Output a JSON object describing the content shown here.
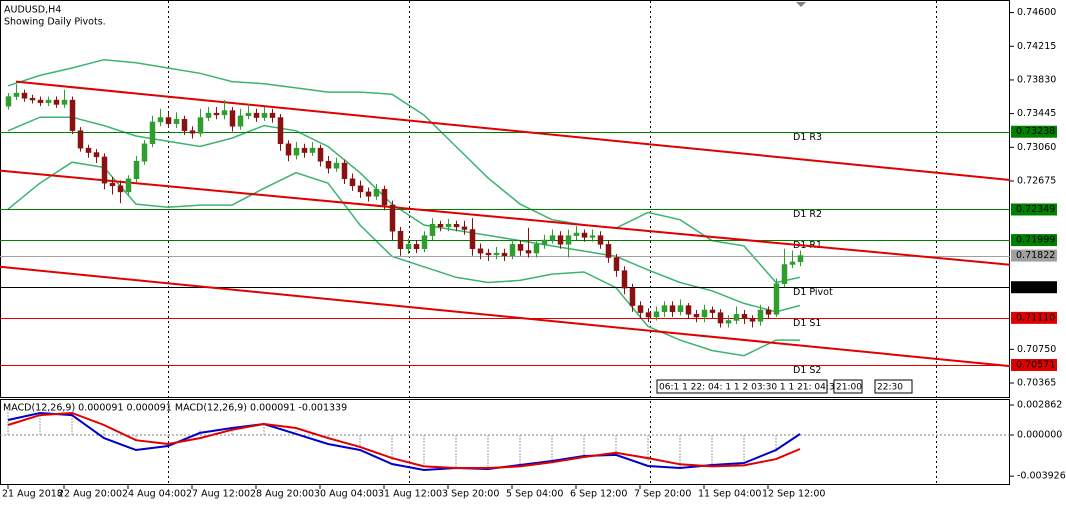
{
  "chart_data": [
    {
      "type": "candlestick",
      "title": "AUDUSD,H4",
      "subtitle": "Showing Daily Pivots.",
      "xlim": [
        -1,
        125.25
      ],
      "ylim": [
        0.70205,
        0.74744
      ],
      "yticks": [
        {
          "value": 0.746,
          "label": "0.74600"
        },
        {
          "value": 0.74215,
          "label": "0.74215"
        },
        {
          "value": 0.7383,
          "label": "0.73830"
        },
        {
          "value": 0.73445,
          "label": "0.73445"
        },
        {
          "value": 0.7306,
          "label": "0.73060"
        },
        {
          "value": 0.72675,
          "label": "0.72675"
        },
        {
          "value": 0.7075,
          "label": "0.70750"
        },
        {
          "value": 0.70365,
          "label": "0.70365"
        }
      ],
      "xticks": [
        {
          "value": 0,
          "label": "21 Aug 2018"
        },
        {
          "value": 7,
          "label": "22 Aug 20:00"
        },
        {
          "value": 15,
          "label": "24 Aug 04:00"
        },
        {
          "value": 23,
          "label": "27 Aug 12:00"
        },
        {
          "value": 31,
          "label": "28 Aug 20:00"
        },
        {
          "value": 39,
          "label": "30 Aug 04:00"
        },
        {
          "value": 47,
          "label": "31 Aug 12:00"
        },
        {
          "value": 55,
          "label": "3 Sep 20:00"
        },
        {
          "value": 63,
          "label": "5 Sep 04:00"
        },
        {
          "value": 71,
          "label": "6 Sep 12:00"
        },
        {
          "value": 79,
          "label": "7 Sep 20:00"
        },
        {
          "value": 87,
          "label": "11 Sep 04:00"
        },
        {
          "value": 95,
          "label": "12 Sep 12:00"
        }
      ],
      "up_color": "#2e9e2e",
      "down_color": "#8b1010",
      "open": [
        0.7353,
        0.7364,
        0.7368,
        0.7362,
        0.736,
        0.7357,
        0.736,
        0.7355,
        0.736,
        0.7325,
        0.7305,
        0.73,
        0.7295,
        0.7265,
        0.7262,
        0.7255,
        0.727,
        0.729,
        0.731,
        0.7335,
        0.734,
        0.7333,
        0.7338,
        0.7325,
        0.7322,
        0.734,
        0.7345,
        0.7343,
        0.7348,
        0.733,
        0.7342,
        0.7345,
        0.734,
        0.7345,
        0.734,
        0.731,
        0.7297,
        0.7305,
        0.73,
        0.7305,
        0.729,
        0.7282,
        0.7288,
        0.727,
        0.7262,
        0.7255,
        0.725,
        0.7258,
        0.724,
        0.721,
        0.719,
        0.7195,
        0.719,
        0.7205,
        0.7218,
        0.7215,
        0.7218,
        0.7215,
        0.7212,
        0.719,
        0.7185,
        0.7183,
        0.7185,
        0.7182,
        0.7195,
        0.7188,
        0.7185,
        0.7195,
        0.72,
        0.7205,
        0.7195,
        0.7205,
        0.7208,
        0.7203,
        0.7205,
        0.7195,
        0.718,
        0.7165,
        0.7145,
        0.7125,
        0.7117,
        0.7112,
        0.7118,
        0.7125,
        0.7118,
        0.7125,
        0.7115,
        0.7112,
        0.712,
        0.7117,
        0.7105,
        0.7108,
        0.7115,
        0.711,
        0.7107,
        0.712,
        0.7115,
        0.715,
        0.7172,
        0.7175
      ],
      "high": [
        0.7368,
        0.7378,
        0.7372,
        0.7366,
        0.7364,
        0.7364,
        0.7364,
        0.7372,
        0.7364,
        0.7329,
        0.7309,
        0.7304,
        0.7299,
        0.7272,
        0.7268,
        0.7274,
        0.7296,
        0.7314,
        0.7342,
        0.735,
        0.7346,
        0.7346,
        0.7342,
        0.733,
        0.735,
        0.7352,
        0.7352,
        0.736,
        0.7352,
        0.735,
        0.7356,
        0.735,
        0.7352,
        0.735,
        0.7344,
        0.7314,
        0.7312,
        0.731,
        0.7312,
        0.7309,
        0.7296,
        0.7294,
        0.7292,
        0.7276,
        0.7268,
        0.726,
        0.7264,
        0.7262,
        0.7245,
        0.7215,
        0.7202,
        0.72,
        0.721,
        0.7225,
        0.7222,
        0.7224,
        0.7222,
        0.7222,
        0.7225,
        0.7196,
        0.719,
        0.7192,
        0.719,
        0.72,
        0.72,
        0.7214,
        0.72,
        0.7206,
        0.7212,
        0.721,
        0.7212,
        0.7216,
        0.7212,
        0.7212,
        0.721,
        0.72,
        0.7184,
        0.717,
        0.715,
        0.713,
        0.7122,
        0.7124,
        0.713,
        0.713,
        0.7132,
        0.7128,
        0.712,
        0.7126,
        0.7124,
        0.7121,
        0.7114,
        0.7124,
        0.712,
        0.7114,
        0.7126,
        0.7124,
        0.7156,
        0.719,
        0.7188,
        0.7188
      ],
      "low": [
        0.7349,
        0.736,
        0.7358,
        0.7356,
        0.7353,
        0.7353,
        0.7351,
        0.7351,
        0.7321,
        0.7301,
        0.7294,
        0.7288,
        0.7258,
        0.7252,
        0.7242,
        0.725,
        0.7266,
        0.7286,
        0.7306,
        0.733,
        0.7328,
        0.7328,
        0.732,
        0.7316,
        0.7318,
        0.7336,
        0.7338,
        0.7338,
        0.7324,
        0.7326,
        0.7338,
        0.7335,
        0.7336,
        0.7334,
        0.7302,
        0.729,
        0.7292,
        0.7294,
        0.7296,
        0.7284,
        0.7276,
        0.7278,
        0.7264,
        0.7256,
        0.7248,
        0.7244,
        0.7246,
        0.7234,
        0.72,
        0.7182,
        0.7184,
        0.7185,
        0.7186,
        0.72,
        0.721,
        0.721,
        0.721,
        0.7206,
        0.7182,
        0.7178,
        0.7176,
        0.7178,
        0.7176,
        0.7178,
        0.7182,
        0.718,
        0.718,
        0.719,
        0.7196,
        0.719,
        0.718,
        0.72,
        0.7198,
        0.7198,
        0.719,
        0.7174,
        0.7158,
        0.7138,
        0.7118,
        0.711,
        0.7106,
        0.7108,
        0.7112,
        0.7112,
        0.7114,
        0.711,
        0.7106,
        0.7106,
        0.711,
        0.71,
        0.71,
        0.7104,
        0.7104,
        0.71,
        0.7102,
        0.711,
        0.7112,
        0.7146,
        0.7168,
        0.717
      ],
      "close": [
        0.7364,
        0.7368,
        0.7362,
        0.736,
        0.7357,
        0.736,
        0.7355,
        0.736,
        0.7325,
        0.7305,
        0.73,
        0.7295,
        0.7265,
        0.7262,
        0.7255,
        0.727,
        0.729,
        0.731,
        0.7335,
        0.734,
        0.7333,
        0.7338,
        0.7325,
        0.7322,
        0.734,
        0.7345,
        0.7343,
        0.7348,
        0.733,
        0.7342,
        0.7345,
        0.734,
        0.7345,
        0.734,
        0.731,
        0.7297,
        0.7305,
        0.73,
        0.7305,
        0.729,
        0.7282,
        0.7288,
        0.727,
        0.7262,
        0.7255,
        0.725,
        0.7258,
        0.724,
        0.721,
        0.719,
        0.7195,
        0.719,
        0.7205,
        0.7218,
        0.7215,
        0.7218,
        0.7215,
        0.7212,
        0.719,
        0.7185,
        0.7183,
        0.7185,
        0.7182,
        0.7195,
        0.7188,
        0.7185,
        0.7195,
        0.72,
        0.7205,
        0.7195,
        0.7205,
        0.7208,
        0.7203,
        0.7205,
        0.7195,
        0.718,
        0.7165,
        0.7145,
        0.7125,
        0.7117,
        0.7112,
        0.7118,
        0.7125,
        0.7118,
        0.7125,
        0.7115,
        0.7112,
        0.712,
        0.7117,
        0.7105,
        0.7108,
        0.7115,
        0.711,
        0.7107,
        0.712,
        0.7115,
        0.715,
        0.7172,
        0.7175,
        0.71822
      ],
      "bands": {
        "color": "#3cb371",
        "x": [
          0,
          4,
          8,
          12,
          16,
          20,
          24,
          28,
          32,
          36,
          40,
          44,
          48,
          52,
          56,
          60,
          64,
          68,
          72,
          76,
          80,
          84,
          88,
          92,
          96,
          99
        ],
        "upper": [
          0.73763,
          0.73882,
          0.73966,
          0.74062,
          0.74026,
          0.73966,
          0.73906,
          0.73811,
          0.73787,
          0.73739,
          0.73691,
          0.73691,
          0.73667,
          0.73428,
          0.73069,
          0.7271,
          0.72411,
          0.72232,
          0.72172,
          0.72136,
          0.72316,
          0.72232,
          0.71993,
          0.71933,
          0.71514,
          0.71574
        ],
        "middle": [
          0.73249,
          0.73404,
          0.73404,
          0.73308,
          0.73189,
          0.73129,
          0.73069,
          0.73165,
          0.73308,
          0.73249,
          0.73069,
          0.7277,
          0.72411,
          0.72172,
          0.72112,
          0.72053,
          0.71993,
          0.71933,
          0.71873,
          0.71813,
          0.71658,
          0.71514,
          0.71419,
          0.71275,
          0.71179,
          0.71251
        ],
        "lower": [
          0.72352,
          0.72651,
          0.7289,
          0.7283,
          0.72411,
          0.72375,
          0.72399,
          0.72399,
          0.72591,
          0.7277,
          0.72651,
          0.72172,
          0.71813,
          0.71694,
          0.71574,
          0.71514,
          0.71538,
          0.7161,
          0.71634,
          0.71455,
          0.71012,
          0.70856,
          0.70737,
          0.70677,
          0.70856,
          0.70856
        ]
      },
      "channels": {
        "color": "#e00000",
        "lines": [
          {
            "x": [
              1,
              125.25
            ],
            "y": [
              0.73811,
              0.72686
            ]
          },
          {
            "x": [
              -1,
              125.25
            ],
            "y": [
              0.72794,
              0.71718
            ]
          },
          {
            "x": [
              -1,
              125.25
            ],
            "y": [
              0.71694,
              0.70558
            ]
          }
        ]
      },
      "levels": [
        {
          "name": "D1 R3",
          "value": 0.73238,
          "label": "0.73238",
          "color": "#008000",
          "text_color": "#000000"
        },
        {
          "name": "D1 R2",
          "value": 0.72349,
          "label": "0.72349",
          "color": "#008000",
          "text_color": "#000000"
        },
        {
          "name": "D1 R1",
          "value": 0.71999,
          "label": "0.71999",
          "color": "#008000",
          "text_color": "#000000"
        },
        {
          "name": "D1 Pivot",
          "value": 0.7146,
          "label": "0.71460",
          "color": "#000000",
          "text_color": "#000000"
        },
        {
          "name": "D1 S1",
          "value": 0.7111,
          "label": "0.71110",
          "color": "#e00000",
          "text_color": "#e00000"
        },
        {
          "name": "D1 S2",
          "value": 0.70571,
          "label": "0.70571",
          "color": "#e00000",
          "text_color": "#e00000"
        }
      ],
      "last_price": {
        "value": 0.71822,
        "label": "0.71822",
        "color": "#a0a0a0"
      },
      "time_boxes": [
        "06:1 1 22: 04: 1 1 2 03:30 1 1 21: 04:30",
        "21:00",
        "22:30"
      ]
    },
    {
      "type": "macd",
      "title": "MACD(12,26,9) 0.000091 0.000091 MACD(12,26,9) 0.000091 -0.001339",
      "ylim": [
        -0.00477,
        0.003434
      ],
      "yticks": [
        0.002862,
        {
          "value": 0,
          "label": "0.000000"
        },
        -0.003926
      ],
      "x": [
        0,
        4,
        8,
        12,
        16,
        20,
        24,
        28,
        32,
        36,
        40,
        44,
        48,
        52,
        56,
        60,
        64,
        68,
        72,
        76,
        80,
        84,
        88,
        92,
        96,
        99
      ],
      "histogram": [
        0.0026,
        0.0025,
        0.0018,
        0.0006,
        -0.0004,
        -0.0002,
        0.0005,
        0.0007,
        0.0009,
        0.0004,
        -0.0003,
        -0.0012,
        -0.0024,
        -0.003,
        -0.0031,
        -0.0031,
        -0.0029,
        -0.0026,
        -0.0022,
        -0.0019,
        -0.0026,
        -0.0031,
        -0.0029,
        -0.0027,
        -0.0016,
        9.1e-05
      ],
      "hist_color": "#a0a0a0",
      "series": [
        {
          "color": "#0000cc",
          "values": [
            0.00143,
            0.0021,
            0.0019,
            -0.0003,
            -0.00143,
            -0.00105,
            0.0002,
            0.00067,
            0.00105,
            0.0001,
            -0.00086,
            -0.00143,
            -0.00277,
            -0.00334,
            -0.00315,
            -0.00324,
            -0.00286,
            -0.00248,
            -0.002,
            -0.0019,
            -0.00296,
            -0.00315,
            -0.00286,
            -0.00267,
            -0.00143,
            9.1e-05
          ]
        },
        {
          "color": "#e00000",
          "values": [
            0.00095,
            0.0019,
            0.0021,
            0.00095,
            -0.0005,
            -0.00086,
            -0.0003,
            0.0005,
            0.00105,
            0.00067,
            -0.0003,
            -0.00114,
            -0.0022,
            -0.003,
            -0.00315,
            -0.00315,
            -0.003,
            -0.0026,
            -0.0021,
            -0.0017,
            -0.0022,
            -0.0028,
            -0.003,
            -0.0029,
            -0.0023,
            -0.001339
          ]
        }
      ]
    }
  ]
}
